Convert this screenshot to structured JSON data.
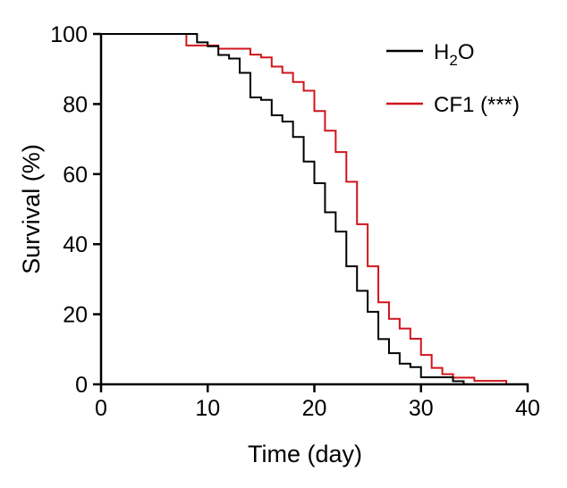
{
  "chart_data": {
    "type": "line",
    "step": true,
    "xlabel": "Time (day)",
    "ylabel": "Survival (%)",
    "xlim": [
      0,
      40
    ],
    "ylim": [
      0,
      100
    ],
    "xticks": [
      0,
      10,
      20,
      30,
      40
    ],
    "yticks": [
      0,
      20,
      40,
      60,
      80,
      100
    ],
    "grid": false,
    "legend_position": "top-right",
    "series": [
      {
        "name": "H2O",
        "color": "#000000",
        "x": [
          0,
          9,
          10,
          11,
          12,
          13,
          14,
          15,
          16,
          17,
          18,
          19,
          20,
          21,
          22,
          23,
          24,
          25,
          26,
          27,
          28,
          29,
          30,
          33,
          34
        ],
        "y": [
          100,
          97.6,
          96.5,
          94,
          93,
          88.9,
          81.9,
          81.2,
          76.8,
          75,
          70.6,
          63.6,
          57.4,
          49.1,
          43.6,
          33.7,
          26.7,
          20.7,
          12.9,
          8.9,
          5.9,
          4.9,
          2.0,
          0.9,
          0
        ]
      },
      {
        "name": "CF1 (***)",
        "color": "#d0141e",
        "x": [
          0,
          8,
          11,
          14,
          15,
          16,
          17,
          18,
          19,
          20,
          21,
          22,
          23,
          24,
          25,
          26,
          27,
          28,
          29,
          30,
          31,
          32,
          33,
          35,
          38
        ],
        "y": [
          100,
          96.7,
          95.8,
          94.1,
          93.3,
          90.7,
          88.9,
          86.3,
          83.8,
          78,
          72.4,
          66.3,
          57.8,
          45.7,
          33.7,
          23.4,
          18.7,
          15.9,
          13,
          8.4,
          4.7,
          2.9,
          1.9,
          1.0,
          0
        ]
      }
    ]
  }
}
